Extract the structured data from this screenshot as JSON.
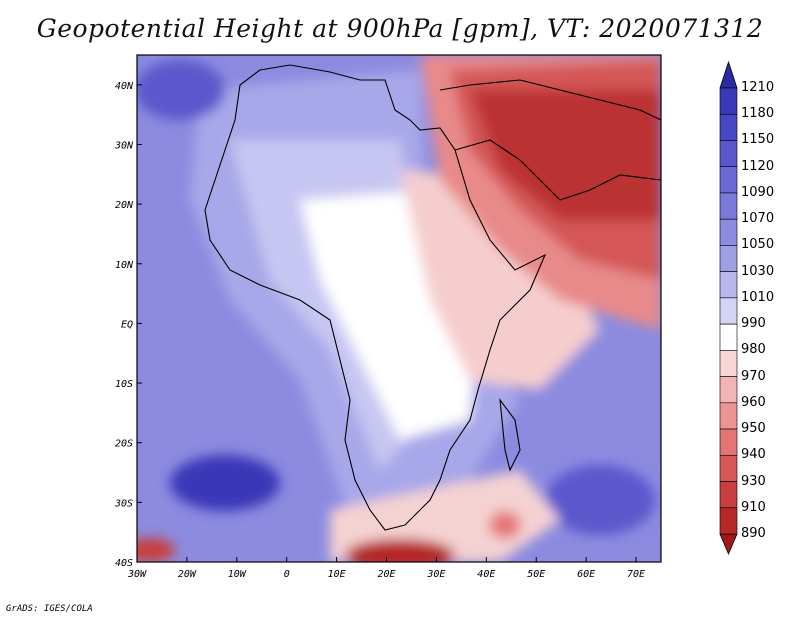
{
  "title": "Geopotential Height at 900hPa [gpm], VT: 2020071312",
  "credit": "GrADS: IGES/COLA",
  "map": {
    "lon_range": [
      -30,
      75
    ],
    "lat_range": [
      -40,
      45
    ],
    "lon_ticks": [
      "30W",
      "20W",
      "10W",
      "0",
      "10E",
      "20E",
      "30E",
      "40E",
      "50E",
      "60E",
      "70E"
    ],
    "lat_ticks": [
      "40N",
      "30N",
      "20N",
      "10N",
      "EQ",
      "10S",
      "20S",
      "30S",
      "40S"
    ]
  },
  "colorbar": {
    "labels": [
      "1210",
      "1180",
      "1150",
      "1120",
      "1090",
      "1070",
      "1050",
      "1030",
      "1010",
      "990",
      "980",
      "970",
      "960",
      "950",
      "940",
      "930",
      "910",
      "890"
    ],
    "colors": [
      "#2b2aa6",
      "#3a39b8",
      "#4847c4",
      "#5a58cc",
      "#6b69d3",
      "#7b79d9",
      "#8c8be0",
      "#a09fe6",
      "#b8b8ee",
      "#d4d4f6",
      "#ffffff",
      "#f8d6d6",
      "#f2b4b4",
      "#ec9494",
      "#e57474",
      "#d85858",
      "#c93e3e",
      "#b52828",
      "#a01818"
    ]
  }
}
